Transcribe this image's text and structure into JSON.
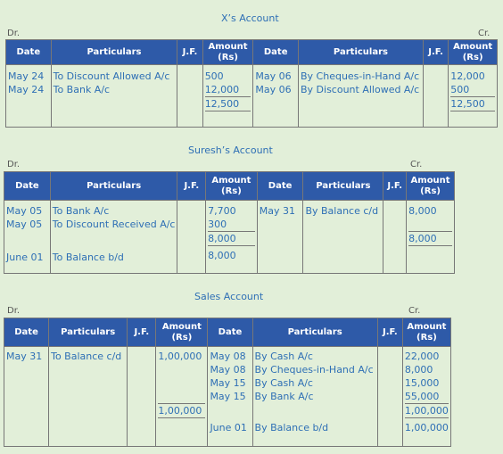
{
  "x_account": {
    "title": "X’s Account",
    "dr": "Dr.",
    "cr": "Cr.",
    "headers": [
      "Date",
      "Particulars",
      "J.F.",
      "Amount (Rs)",
      "Date",
      "Particulars",
      "J.F.",
      "Amount (Rs)"
    ],
    "debit": [
      {
        "date": "May 24",
        "particulars": "To Discount Allowed A/c",
        "amount": "500"
      },
      {
        "date": "May 24",
        "particulars": "To Bank A/c",
        "amount": "12,000"
      }
    ],
    "debit_total": "12,500",
    "credit": [
      {
        "date": "May 06",
        "particulars": "By Cheques-in-Hand A/c",
        "amount": "12,000"
      },
      {
        "date": "May 06",
        "particulars": "By Discount Allowed A/c",
        "amount": "500"
      }
    ],
    "credit_total": "12,500"
  },
  "suresh_account": {
    "title": "Suresh’s Account",
    "dr": "Dr.",
    "cr": "Cr.",
    "headers": [
      "Date",
      "Particulars",
      "J.F.",
      "Amount (Rs)",
      "Date",
      "Particulars",
      "J.F.",
      "Amount (Rs)"
    ],
    "debit": [
      {
        "date": "May 05",
        "particulars": "To Bank A/c",
        "amount": "7,700"
      },
      {
        "date": "May 05",
        "particulars": "To Discount Received A/c",
        "amount": "300"
      }
    ],
    "debit_total": "8,000",
    "debit_balance": {
      "date": "June 01",
      "particulars": "To Balance b/d",
      "amount": "8,000"
    },
    "credit": [
      {
        "date": "May 31",
        "particulars": "By Balance c/d",
        "amount": "8,000"
      }
    ],
    "credit_total": "8,000"
  },
  "sales_account": {
    "title": "Sales Account",
    "dr": "Dr.",
    "cr": "Cr.",
    "headers": [
      "Date",
      "Particulars",
      "J.F.",
      "Amount (Rs)",
      "Date",
      "Particulars",
      "J.F.",
      "Amount (Rs)"
    ],
    "debit": [
      {
        "date": "May 31",
        "particulars": "To Balance c/d",
        "amount": "1,00,000"
      }
    ],
    "debit_total": "1,00,000",
    "credit": [
      {
        "date": "May 08",
        "particulars": "By Cash A/c",
        "amount": "22,000"
      },
      {
        "date": "May 08",
        "particulars": "By Cheques-in-Hand A/c",
        "amount": "8,000"
      },
      {
        "date": "May 15",
        "particulars": "By Cash A/c",
        "amount": "15,000"
      },
      {
        "date": "May 15",
        "particulars": "By Bank A/c",
        "amount": "55,000"
      }
    ],
    "credit_total": "1,00,000",
    "credit_balance": {
      "date": "June 01",
      "particulars": "By Balance b/d",
      "amount": "1,00,000"
    }
  }
}
